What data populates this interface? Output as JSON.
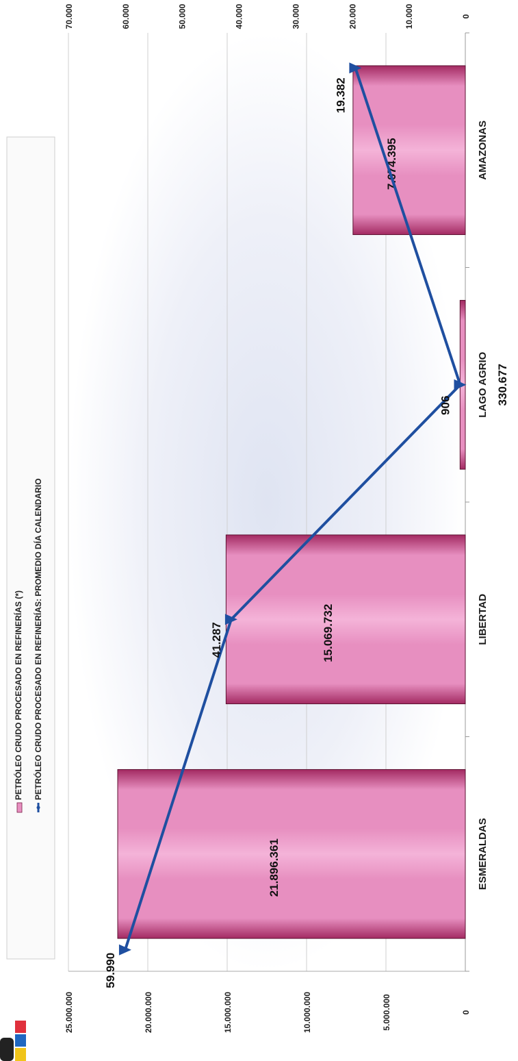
{
  "colors": {
    "bar": "#e78fc0",
    "bar_dark": "#a32a62",
    "line": "#1f4fa0",
    "logo_yellow": "#f0c419",
    "logo_blue": "#1f67c1",
    "logo_red": "#e0303c"
  },
  "legend": {
    "position": "top",
    "items": [
      {
        "text": "PETRÓLEO CRUDO PROCESADO EN REFINERÍAS (*)",
        "icon": "pink-bar-swatch"
      },
      {
        "text": "PETRÓLEO CRUDO PROCESADO EN REFINERÍAS:  PROMEDIO DÍA CALENDARIO",
        "icon": "blue-line-marker"
      }
    ]
  },
  "chart_data": {
    "type": "bar",
    "orientation": "rotated-90",
    "categories": [
      "ESMERALDAS",
      "LIBERTAD",
      "LAGO AGRIO",
      "AMAZONAS"
    ],
    "series": [
      {
        "type": "bar",
        "axis": "primary",
        "values": [
          21896361,
          15069732,
          330677,
          7074395
        ],
        "value_labels": [
          "21.896.361",
          "15.069.732",
          "330.677",
          "7.074.395"
        ]
      },
      {
        "type": "line",
        "axis": "secondary",
        "values": [
          59990,
          41287,
          906,
          19382
        ],
        "value_labels": [
          "59.990",
          "41.287",
          "906",
          "19.382"
        ]
      }
    ],
    "primary_axis": {
      "ylim": [
        0,
        25000000
      ],
      "ticks": [
        0,
        5000000,
        10000000,
        15000000,
        20000000,
        25000000
      ],
      "tick_labels": [
        "0",
        "5.000.000",
        "10.000.000",
        "15.000.000",
        "20.000.000",
        "25.000.000"
      ]
    },
    "secondary_axis": {
      "ylim": [
        0,
        70000
      ],
      "ticks": [
        0,
        10000,
        20000,
        30000,
        40000,
        50000,
        60000,
        70000
      ],
      "tick_labels": [
        "0",
        "10.000",
        "20.000",
        "30.000",
        "40.000",
        "50.000",
        "60.000",
        "70.000"
      ]
    },
    "grid": true
  }
}
